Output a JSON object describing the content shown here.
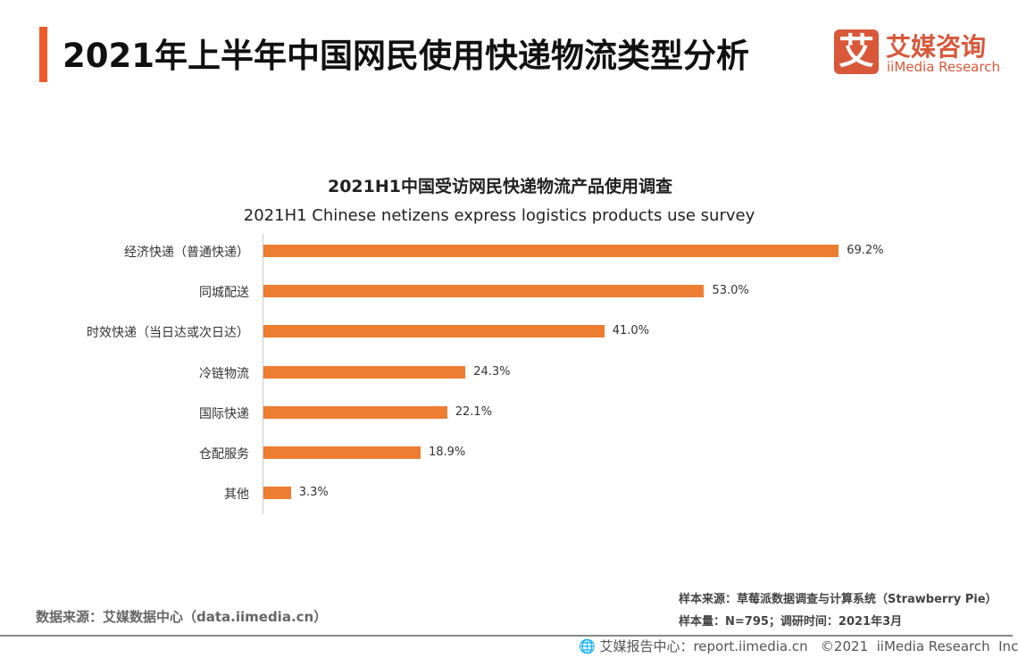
{
  "header": {
    "title": "2021年上半年中国网民使用快递物流类型分析",
    "accent_color": "#f05a28"
  },
  "logo": {
    "mark": "艾",
    "name_cn": "艾媒咨询",
    "name_en": "iiMedia Research",
    "color": "#d9583a"
  },
  "chart_data": {
    "type": "bar",
    "orientation": "horizontal",
    "title": "2021H1中国受访网民快递物流产品使用调查",
    "subtitle": "2021H1 Chinese netizens express logistics products use survey",
    "categories": [
      "经济快递（普通快递）",
      "同城配送",
      "时效快递（当日达或次日达）",
      "冷链物流",
      "国际快递",
      "仓配服务",
      "其他"
    ],
    "values": [
      69.2,
      53.0,
      41.0,
      24.3,
      22.1,
      18.9,
      3.3
    ],
    "labels": [
      "69.2%",
      "53.0%",
      "41.0%",
      "24.3%",
      "22.1%",
      "18.9%",
      "3.3%"
    ],
    "unit": "%",
    "bar_color": "#ed7d31",
    "grid": false,
    "legend": "none"
  },
  "footer": {
    "data_source": "数据来源：艾媒数据中心（data.iimedia.cn）",
    "sample_source": "样本来源：草莓派数据调查与计算系统（Strawberry Pie）",
    "sample_size": "样本量：N=795；调研时间：2021年3月",
    "bottom_line": "艾媒报告中心：report.iimedia.cn   ©2021  iiMedia Research  Inc",
    "globe_icon": "globe-cursor-icon"
  }
}
